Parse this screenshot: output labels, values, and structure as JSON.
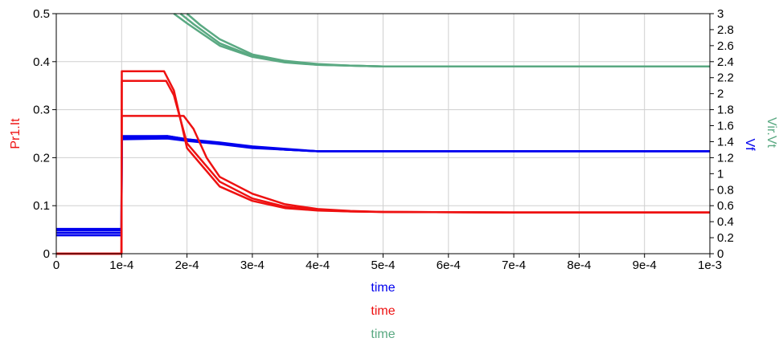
{
  "chart_data": {
    "type": "line",
    "title": "",
    "grid": true,
    "x": {
      "min": 0,
      "max": 0.001,
      "ticks": [
        0,
        0.0001,
        0.0002,
        0.0003,
        0.0004,
        0.0005,
        0.0006,
        0.0007,
        0.0008,
        0.0009,
        0.001
      ],
      "tick_labels": [
        "0",
        "1e-4",
        "2e-4",
        "3e-4",
        "4e-4",
        "5e-4",
        "6e-4",
        "7e-4",
        "8e-4",
        "9e-4",
        "1e-3"
      ],
      "labels": [
        {
          "text": "time",
          "color": "#0000ee"
        },
        {
          "text": "time",
          "color": "#ee1111"
        },
        {
          "text": "time",
          "color": "#5aa982"
        }
      ]
    },
    "y_left": {
      "label": "Pr1.It",
      "color": "#ee1111",
      "min": 0,
      "max": 0.5,
      "ticks": [
        0,
        0.1,
        0.2,
        0.3,
        0.4,
        0.5
      ],
      "tick_labels": [
        "0",
        "0.1",
        "0.2",
        "0.3",
        "0.4",
        "0.5"
      ]
    },
    "y_right": {
      "labels": [
        {
          "text": "Vf",
          "color": "#0000ee"
        },
        {
          "text": "Vir.Vt",
          "color": "#5aa982"
        }
      ],
      "min": 0,
      "max": 3,
      "ticks": [
        0,
        0.2,
        0.4,
        0.6,
        0.8,
        1,
        1.2,
        1.4,
        1.6,
        1.8,
        2,
        2.2,
        2.4,
        2.6,
        2.8,
        3
      ],
      "tick_labels": [
        "0",
        "0.2",
        "0.4",
        "0.6",
        "0.8",
        "1",
        "1.2",
        "1.4",
        "1.6",
        "1.8",
        "2",
        "2.2",
        "2.4",
        "2.6",
        "2.8",
        "3"
      ]
    },
    "series": [
      {
        "axis": "right",
        "color": "#5aa982",
        "x": [
          0.00018,
          0.0002,
          0.00025,
          0.0003,
          0.00035,
          0.0004,
          0.00045,
          0.0005,
          0.0006,
          0.0008,
          0.001
        ],
        "y": [
          3.0,
          2.88,
          2.6,
          2.46,
          2.39,
          2.36,
          2.35,
          2.34,
          2.34,
          2.34,
          2.34
        ]
      },
      {
        "axis": "right",
        "color": "#5aa982",
        "x": [
          0.0002,
          0.00022,
          0.00025,
          0.0003,
          0.00035,
          0.0004,
          0.00045,
          0.0005,
          0.0006,
          0.0008,
          0.001
        ],
        "y": [
          3.0,
          2.86,
          2.68,
          2.49,
          2.41,
          2.37,
          2.35,
          2.34,
          2.34,
          2.34,
          2.34
        ]
      },
      {
        "axis": "right",
        "color": "#5aa982",
        "x": [
          0.00019,
          0.00021,
          0.00025,
          0.0003,
          0.00035,
          0.0004,
          0.00045,
          0.0005,
          0.0006,
          0.0008,
          0.001
        ],
        "y": [
          3.0,
          2.87,
          2.63,
          2.47,
          2.4,
          2.36,
          2.35,
          2.34,
          2.34,
          2.34,
          2.34
        ]
      },
      {
        "axis": "right",
        "color": "#0000ee",
        "x": [
          0,
          9.98e-05,
          0.0001002,
          0.00017,
          0.0002,
          0.00025,
          0.0003,
          0.00035,
          0.0004,
          0.0005,
          0.001
        ],
        "y": [
          0.23,
          0.23,
          1.43,
          1.44,
          1.41,
          1.37,
          1.32,
          1.3,
          1.28,
          1.28,
          1.28
        ]
      },
      {
        "axis": "right",
        "color": "#0000ee",
        "x": [
          0,
          9.98e-05,
          0.0001002,
          0.00017,
          0.0002,
          0.00025,
          0.0003,
          0.00035,
          0.0004,
          0.0005,
          0.001
        ],
        "y": [
          0.26,
          0.26,
          1.45,
          1.46,
          1.42,
          1.38,
          1.33,
          1.3,
          1.28,
          1.28,
          1.28
        ]
      },
      {
        "axis": "right",
        "color": "#0000ee",
        "x": [
          0,
          9.98e-05,
          0.0001002,
          0.00017,
          0.0002,
          0.00025,
          0.0003,
          0.00035,
          0.0004,
          0.0005,
          0.001
        ],
        "y": [
          0.29,
          0.29,
          1.46,
          1.47,
          1.43,
          1.38,
          1.33,
          1.3,
          1.28,
          1.28,
          1.28
        ]
      },
      {
        "axis": "right",
        "color": "#0000ee",
        "x": [
          0,
          9.98e-05,
          0.0001002,
          0.00017,
          0.0002,
          0.00025,
          0.0003,
          0.00035,
          0.0004,
          0.0005,
          0.001
        ],
        "y": [
          0.31,
          0.31,
          1.47,
          1.47,
          1.43,
          1.39,
          1.34,
          1.31,
          1.28,
          1.28,
          1.28
        ]
      },
      {
        "axis": "left",
        "color": "#ee1111",
        "x": [
          0,
          9.98e-05,
          0.0001002,
          0.000165,
          0.00018,
          0.0002,
          0.00025,
          0.0003,
          0.00035,
          0.0004,
          0.00045,
          0.0005,
          0.0007,
          0.001
        ],
        "y": [
          0,
          0,
          0.38,
          0.38,
          0.34,
          0.22,
          0.14,
          0.11,
          0.095,
          0.09,
          0.088,
          0.087,
          0.086,
          0.086
        ]
      },
      {
        "axis": "left",
        "color": "#ee1111",
        "x": [
          0,
          9.98e-05,
          0.0001002,
          0.000168,
          0.00018,
          0.0002,
          0.00025,
          0.0003,
          0.00035,
          0.0004,
          0.00045,
          0.0005,
          0.0007,
          0.001
        ],
        "y": [
          0,
          0,
          0.36,
          0.36,
          0.33,
          0.23,
          0.15,
          0.115,
          0.098,
          0.091,
          0.088,
          0.087,
          0.086,
          0.086
        ]
      },
      {
        "axis": "left",
        "color": "#ee1111",
        "x": [
          0,
          9.98e-05,
          0.0001002,
          0.000195,
          0.00021,
          0.00023,
          0.00025,
          0.0003,
          0.00035,
          0.0004,
          0.00045,
          0.0005,
          0.0007,
          0.001
        ],
        "y": [
          0,
          0,
          0.287,
          0.287,
          0.26,
          0.2,
          0.16,
          0.125,
          0.103,
          0.093,
          0.089,
          0.087,
          0.086,
          0.086
        ]
      }
    ]
  }
}
